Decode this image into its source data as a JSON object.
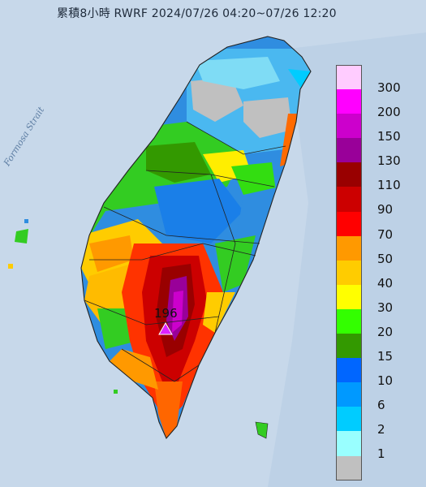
{
  "title": "累積8小時 RWRF 2024/07/26 04:20~07/26 12:20",
  "map": {
    "sea_label": "Formosa Strait",
    "peak_value": "196"
  },
  "legend": [
    {
      "label": "300",
      "color": "#ffccff"
    },
    {
      "label": "200",
      "color": "#ff00ff"
    },
    {
      "label": "150",
      "color": "#cc00cc"
    },
    {
      "label": "130",
      "color": "#990099"
    },
    {
      "label": "110",
      "color": "#990000"
    },
    {
      "label": "90",
      "color": "#cc0000"
    },
    {
      "label": "70",
      "color": "#ff0000"
    },
    {
      "label": "50",
      "color": "#ff9900"
    },
    {
      "label": "40",
      "color": "#ffcc00"
    },
    {
      "label": "30",
      "color": "#ffff00"
    },
    {
      "label": "20",
      "color": "#33ff00"
    },
    {
      "label": "15",
      "color": "#339900"
    },
    {
      "label": "10",
      "color": "#0066ff"
    },
    {
      "label": "6",
      "color": "#0099ff"
    },
    {
      "label": "2",
      "color": "#00ccff"
    },
    {
      "label": "1",
      "color": "#99ffff"
    },
    {
      "label": "",
      "color": "#c0c0c0"
    }
  ]
}
